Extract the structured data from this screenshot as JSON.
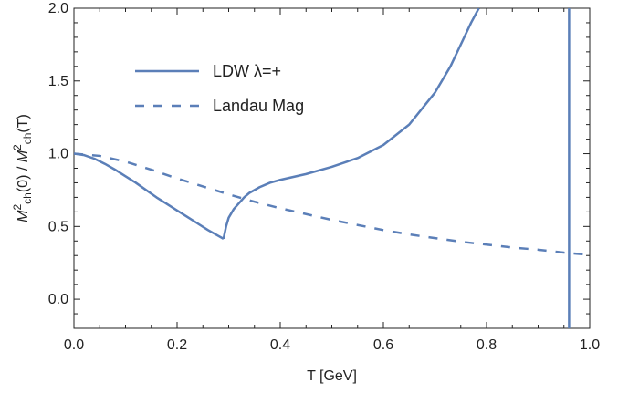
{
  "chart_data": {
    "type": "line",
    "title": "",
    "xlabel": "T [GeV]",
    "ylabel_parts": {
      "m1": "M",
      "sup1": "2",
      "sub1": "ch",
      "mid": "(0) / ",
      "m2": "M",
      "sup2": "2",
      "sub2": "ch",
      "end": "(T)"
    },
    "xlim": [
      0.0,
      1.0
    ],
    "ylim": [
      -0.2,
      2.0
    ],
    "x_ticks": [
      0.0,
      0.2,
      0.4,
      0.6,
      0.8,
      1.0
    ],
    "x_tick_labels": [
      "0.0",
      "0.2",
      "0.4",
      "0.6",
      "0.8",
      "1.0"
    ],
    "y_ticks": [
      0.0,
      0.5,
      1.0,
      1.5,
      2.0
    ],
    "y_tick_labels": [
      "0.0",
      "0.5",
      "1.0",
      "1.5",
      "2.0"
    ],
    "grid": false,
    "legend_position": "top-left",
    "line_color": "#5b7fb8",
    "series": [
      {
        "name": "LDW λ=+",
        "style": "solid",
        "segments": [
          {
            "x": [
              0.0,
              0.02,
              0.04,
              0.06,
              0.08,
              0.1,
              0.12,
              0.14,
              0.16,
              0.18,
              0.2,
              0.22,
              0.24,
              0.26,
              0.28,
              0.29
            ],
            "y": [
              1.0,
              0.99,
              0.965,
              0.93,
              0.89,
              0.845,
              0.8,
              0.75,
              0.7,
              0.655,
              0.61,
              0.565,
              0.52,
              0.475,
              0.435,
              0.415
            ]
          },
          {
            "x": [
              0.29,
              0.295,
              0.3,
              0.31,
              0.32,
              0.33,
              0.34,
              0.36,
              0.38,
              0.4,
              0.45,
              0.5,
              0.55,
              0.6,
              0.65,
              0.7,
              0.73,
              0.75,
              0.77,
              0.785
            ],
            "y": [
              0.415,
              0.5,
              0.56,
              0.62,
              0.66,
              0.7,
              0.73,
              0.77,
              0.8,
              0.82,
              0.86,
              0.91,
              0.97,
              1.06,
              1.2,
              1.42,
              1.6,
              1.75,
              1.9,
              2.0
            ]
          },
          {
            "x": [
              0.96,
              0.96
            ],
            "y": [
              -0.2,
              2.0
            ]
          }
        ]
      },
      {
        "name": "Landau Mag",
        "style": "dashed",
        "segments": [
          {
            "x": [
              0.0,
              0.05,
              0.1,
              0.15,
              0.2,
              0.25,
              0.3,
              0.35,
              0.4,
              0.45,
              0.5,
              0.55,
              0.6,
              0.65,
              0.7,
              0.75,
              0.8,
              0.85,
              0.9,
              0.95,
              1.0
            ],
            "y": [
              1.0,
              0.985,
              0.945,
              0.89,
              0.83,
              0.775,
              0.72,
              0.67,
              0.625,
              0.585,
              0.545,
              0.51,
              0.475,
              0.445,
              0.42,
              0.395,
              0.375,
              0.355,
              0.34,
              0.32,
              0.305
            ]
          }
        ]
      }
    ]
  }
}
